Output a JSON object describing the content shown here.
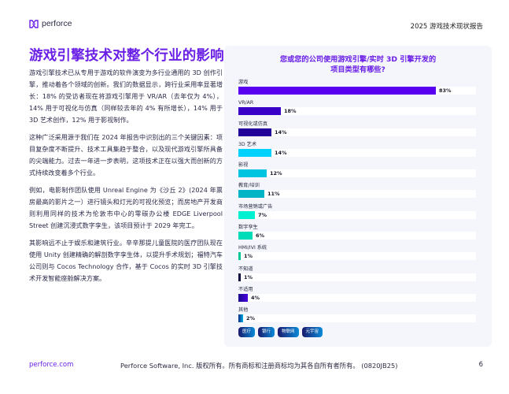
{
  "header": {
    "logo_text": "perforce",
    "report_title": "2025 游戏技术现状报告"
  },
  "main": {
    "page_title": "游戏引擎技术对整个行业的影响",
    "paragraphs": [
      "游戏引擎技术已从专用于游戏的软件演变为多行业通用的 3D 创作引擎，推动着各个领域的创新。我们的数据显示，跨行业采用率显著增长：18% 的受访者现在将游戏引擎用于 VR/AR（去年仅为 4%），14% 用于可视化与仿真（同样较去年的 4% 有所增长），14% 用于 3D 艺术创作，12% 用于影视制作。",
      "这种广泛采用源于我们在 2024 年报告中识别出的三个关键因素：项目复杂度不断提升、技术工具集趋于整合，以及现代游戏引擎所具备的尖端能力。过去一年进一步表明，这项技术正在以强大而创新的方式持续改变着多个行业。",
      "例如，电影制作团队使用 Unreal Engine 为《沙丘 2》(2024 年票房最高的影片之一）进行镜头和灯光的可视化预览；而房地产开发商则利用同样的技术为伦敦市中心的零碳办公楼 EDGE Liverpool Street 创建沉浸式数字孪生，该项目预计于 2029 年完工。",
      "其影响远不止于娱乐和建筑行业。辛辛那提儿童医院的医疗团队现在使用 Unity 创建精确的解剖数字孪生体，以提升手术规划；福特汽车公司则与 Cocos Technology 合作，基于 Cocos 的实时 3D 引擎技术开发智能座舱解决方案。"
    ]
  },
  "chart_data": {
    "type": "bar",
    "orientation": "horizontal",
    "title": "您或您的公司使用游戏引擎/实时 3D 引擎开发的项目类型有哪些?",
    "title_lines": [
      "您或您的公司使用游戏引擎/实时 3D 引擎开发的",
      "项目类型有哪些?"
    ],
    "categories": [
      "游戏",
      "VR/AR",
      "可视化或仿真",
      "3D 艺术",
      "影视",
      "教育/培训",
      "市场营销或广告",
      "数字孪生",
      "HMI/IVI 系统",
      "不知道",
      "不适用",
      "其他"
    ],
    "values": [
      83,
      18,
      14,
      14,
      12,
      11,
      7,
      6,
      1,
      1,
      4,
      2
    ],
    "value_labels": [
      "83%",
      "18%",
      "14%",
      "14%",
      "12%",
      "11%",
      "7%",
      "6%",
      "1%",
      "1%",
      "4%",
      "2%"
    ],
    "colors": [
      "#5a00f0",
      "#3a00c8",
      "#22009a",
      "#00d2ff",
      "#00c4e0",
      "#00b4c8",
      "#00f0d2",
      "#00dcb8",
      "#00c896",
      "#0a0a40",
      "#2a00b0",
      "#0088cc"
    ],
    "xlim": [
      0,
      100
    ],
    "legend": [
      "医疗",
      "银行",
      "物联网",
      "元宇宙"
    ],
    "xlabel": "",
    "ylabel": ""
  },
  "footer": {
    "link": "perforce.com",
    "copyright": "Perforce Software, Inc. 版权所有。所有商标和注册商标均为其各自所有者所有。 (0820JB25)",
    "page_number": "6"
  }
}
